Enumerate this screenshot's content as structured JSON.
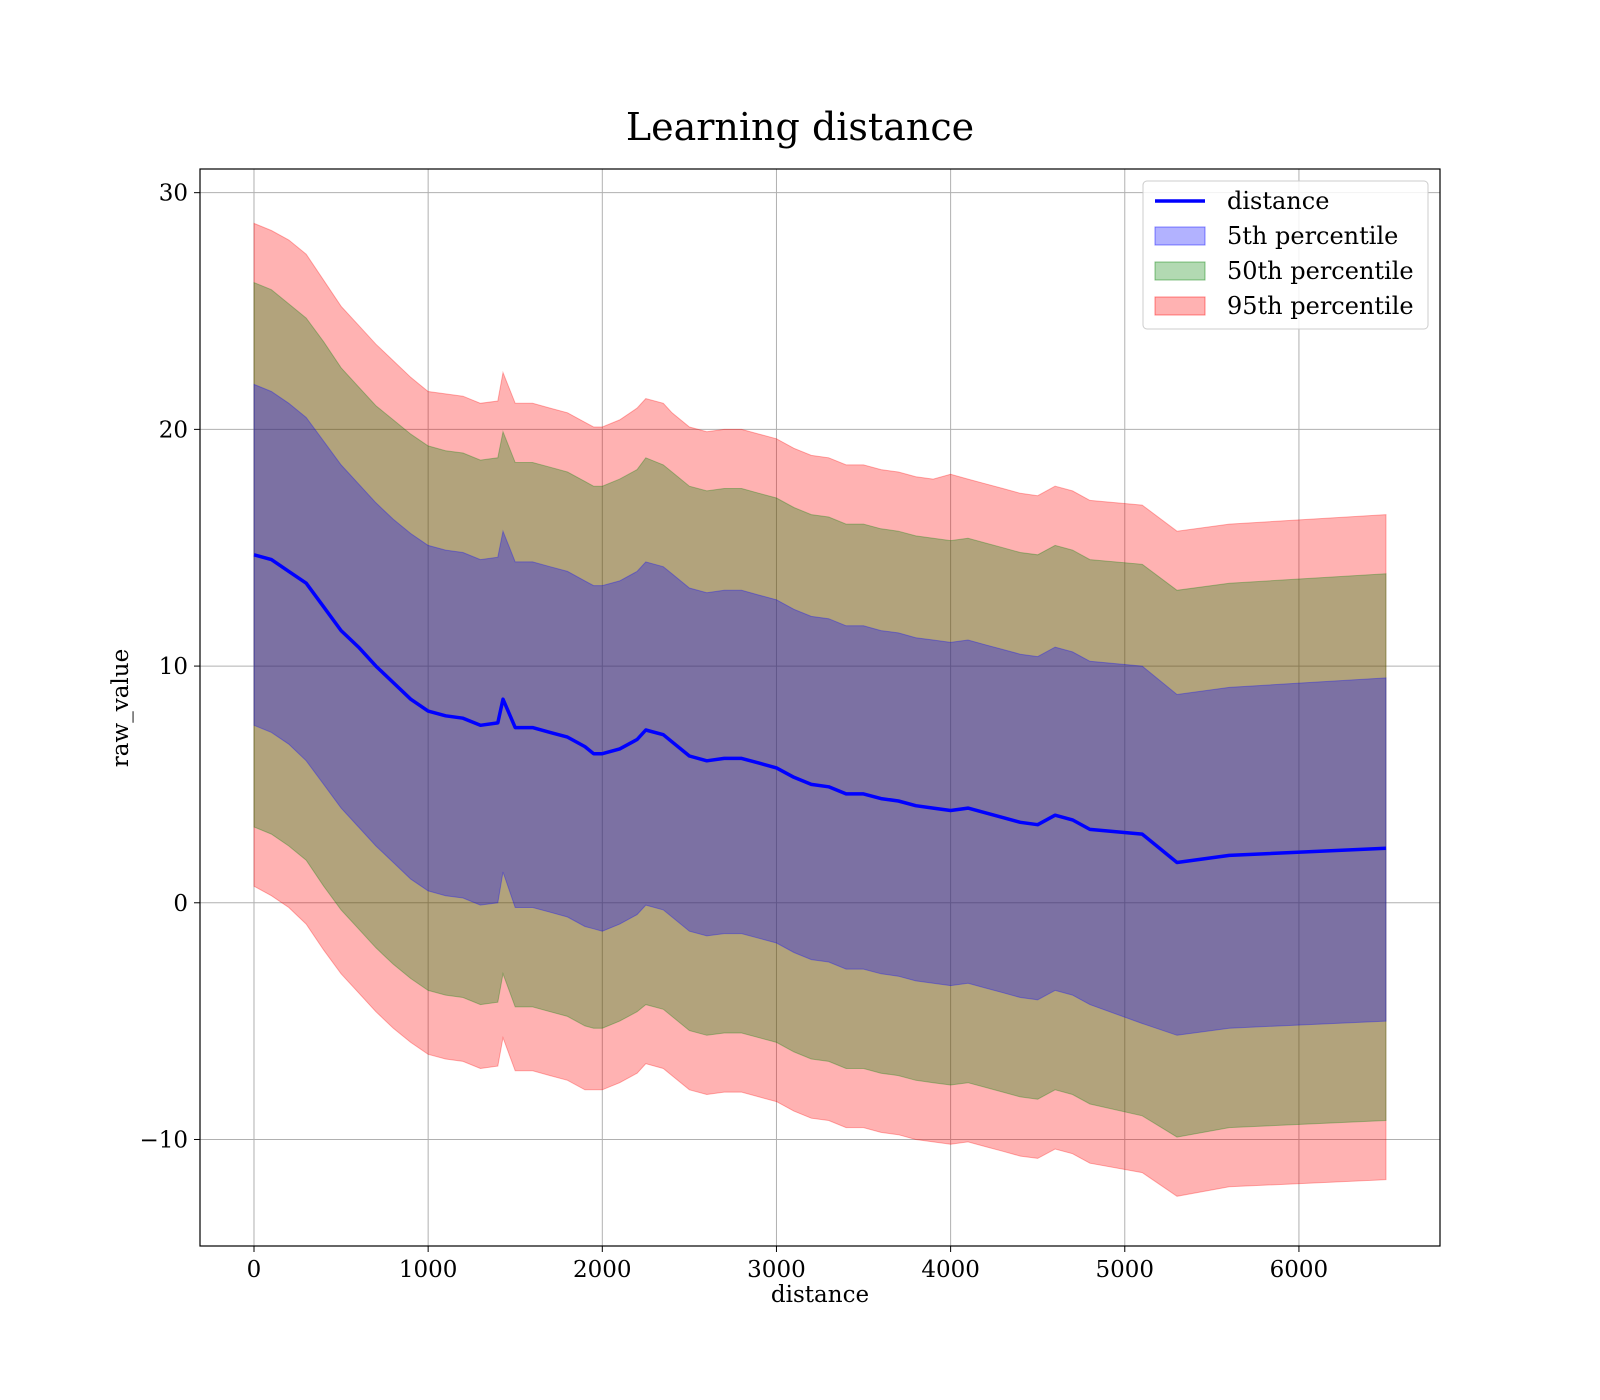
{
  "chart_data": {
    "type": "area",
    "title": "Learning distance",
    "xlabel": "distance",
    "ylabel": "raw_value",
    "xlim": [
      -310,
      6810
    ],
    "ylim": [
      -14.5,
      31
    ],
    "x_ticks": [
      0,
      1000,
      2000,
      3000,
      4000,
      5000,
      6000
    ],
    "y_ticks": [
      -10,
      0,
      10,
      20,
      30
    ],
    "y_tick_labels": [
      "−10",
      "0",
      "10",
      "20",
      "30"
    ],
    "grid": true,
    "legend_position": "top-right",
    "x": [
      0,
      100,
      200,
      300,
      400,
      500,
      600,
      700,
      800,
      900,
      1000,
      1100,
      1200,
      1300,
      1400,
      1430,
      1500,
      1600,
      1700,
      1800,
      1900,
      1950,
      2000,
      2100,
      2200,
      2250,
      2350,
      2400,
      2500,
      2600,
      2700,
      2800,
      2900,
      3000,
      3100,
      3200,
      3300,
      3400,
      3500,
      3600,
      3700,
      3800,
      3900,
      4000,
      4100,
      4200,
      4300,
      4400,
      4500,
      4600,
      4700,
      4800,
      5100,
      5300,
      5600,
      6500
    ],
    "series": [
      {
        "name": "distance",
        "color": "#0000ff",
        "values": [
          14.7,
          14.5,
          14.0,
          13.5,
          12.5,
          11.5,
          10.8,
          10.0,
          9.3,
          8.6,
          8.1,
          7.9,
          7.8,
          7.5,
          7.6,
          8.6,
          7.4,
          7.4,
          7.2,
          7.0,
          6.6,
          6.3,
          6.3,
          6.5,
          6.9,
          7.3,
          7.1,
          6.8,
          6.2,
          6.0,
          6.1,
          6.1,
          5.9,
          5.7,
          5.3,
          5.0,
          4.9,
          4.6,
          4.6,
          4.4,
          4.3,
          4.1,
          4.0,
          3.9,
          4.0,
          3.8,
          3.6,
          3.4,
          3.3,
          3.7,
          3.5,
          3.1,
          2.9,
          1.7,
          2.0,
          2.3
        ]
      },
      {
        "name": "5th percentile",
        "color": "#0000ff",
        "opacity": 0.3,
        "upper": [
          21.9,
          21.6,
          21.1,
          20.5,
          19.5,
          18.5,
          17.7,
          16.9,
          16.2,
          15.6,
          15.1,
          14.9,
          14.8,
          14.5,
          14.6,
          15.7,
          14.4,
          14.4,
          14.2,
          14.0,
          13.6,
          13.4,
          13.4,
          13.6,
          14.0,
          14.4,
          14.2,
          13.9,
          13.3,
          13.1,
          13.2,
          13.2,
          13.0,
          12.8,
          12.4,
          12.1,
          12.0,
          11.7,
          11.7,
          11.5,
          11.4,
          11.2,
          11.1,
          11.0,
          11.1,
          10.9,
          10.7,
          10.5,
          10.4,
          10.8,
          10.6,
          10.2,
          10.0,
          8.8,
          9.1,
          9.5
        ],
        "lower": [
          7.5,
          7.2,
          6.7,
          6.0,
          5.0,
          4.0,
          3.2,
          2.4,
          1.7,
          1.0,
          0.5,
          0.3,
          0.2,
          -0.1,
          0.0,
          1.3,
          -0.2,
          -0.2,
          -0.4,
          -0.6,
          -1.0,
          -1.1,
          -1.2,
          -0.9,
          -0.5,
          -0.1,
          -0.3,
          -0.6,
          -1.2,
          -1.4,
          -1.3,
          -1.3,
          -1.5,
          -1.7,
          -2.1,
          -2.4,
          -2.5,
          -2.8,
          -2.8,
          -3.0,
          -3.1,
          -3.3,
          -3.4,
          -3.5,
          -3.4,
          -3.6,
          -3.8,
          -4.0,
          -4.1,
          -3.7,
          -3.9,
          -4.3,
          -5.1,
          -5.6,
          -5.3,
          -5.0
        ]
      },
      {
        "name": "50th percentile",
        "color": "#008000",
        "opacity": 0.3,
        "upper": [
          26.2,
          25.9,
          25.3,
          24.7,
          23.7,
          22.6,
          21.8,
          21.0,
          20.4,
          19.8,
          19.3,
          19.1,
          19.0,
          18.7,
          18.8,
          19.9,
          18.6,
          18.6,
          18.4,
          18.2,
          17.8,
          17.6,
          17.6,
          17.9,
          18.3,
          18.8,
          18.5,
          18.2,
          17.6,
          17.4,
          17.5,
          17.5,
          17.3,
          17.1,
          16.7,
          16.4,
          16.3,
          16.0,
          16.0,
          15.8,
          15.7,
          15.5,
          15.4,
          15.3,
          15.4,
          15.2,
          15.0,
          14.8,
          14.7,
          15.1,
          14.9,
          14.5,
          14.3,
          13.2,
          13.5,
          13.9
        ],
        "lower": [
          3.2,
          2.9,
          2.4,
          1.8,
          0.7,
          -0.3,
          -1.1,
          -1.9,
          -2.6,
          -3.2,
          -3.7,
          -3.9,
          -4.0,
          -4.3,
          -4.2,
          -3.0,
          -4.4,
          -4.4,
          -4.6,
          -4.8,
          -5.2,
          -5.3,
          -5.3,
          -5.0,
          -4.6,
          -4.3,
          -4.5,
          -4.8,
          -5.4,
          -5.6,
          -5.5,
          -5.5,
          -5.7,
          -5.9,
          -6.3,
          -6.6,
          -6.7,
          -7.0,
          -7.0,
          -7.2,
          -7.3,
          -7.5,
          -7.6,
          -7.7,
          -7.6,
          -7.8,
          -8.0,
          -8.2,
          -8.3,
          -7.9,
          -8.1,
          -8.5,
          -9.0,
          -9.9,
          -9.5,
          -9.2
        ]
      },
      {
        "name": "95th percentile",
        "color": "#ff0000",
        "opacity": 0.3,
        "upper": [
          28.7,
          28.4,
          28.0,
          27.4,
          26.3,
          25.2,
          24.4,
          23.6,
          22.9,
          22.2,
          21.6,
          21.5,
          21.4,
          21.1,
          21.2,
          22.4,
          21.1,
          21.1,
          20.9,
          20.7,
          20.3,
          20.1,
          20.1,
          20.4,
          20.9,
          21.3,
          21.1,
          20.7,
          20.1,
          19.9,
          20.0,
          20.0,
          19.8,
          19.6,
          19.2,
          18.9,
          18.8,
          18.5,
          18.5,
          18.3,
          18.2,
          18.0,
          17.9,
          18.1,
          17.9,
          17.7,
          17.5,
          17.3,
          17.2,
          17.6,
          17.4,
          17.0,
          16.8,
          15.7,
          16.0,
          16.4
        ],
        "lower": [
          0.7,
          0.3,
          -0.2,
          -0.9,
          -2.0,
          -3.0,
          -3.8,
          -4.6,
          -5.3,
          -5.9,
          -6.4,
          -6.6,
          -6.7,
          -7.0,
          -6.9,
          -5.7,
          -7.1,
          -7.1,
          -7.3,
          -7.5,
          -7.9,
          -7.9,
          -7.9,
          -7.6,
          -7.2,
          -6.8,
          -7.0,
          -7.3,
          -7.9,
          -8.1,
          -8.0,
          -8.0,
          -8.2,
          -8.4,
          -8.8,
          -9.1,
          -9.2,
          -9.5,
          -9.5,
          -9.7,
          -9.8,
          -10.0,
          -10.1,
          -10.2,
          -10.1,
          -10.3,
          -10.5,
          -10.7,
          -10.8,
          -10.4,
          -10.6,
          -11.0,
          -11.4,
          -12.4,
          -12.0,
          -11.7
        ]
      }
    ]
  }
}
